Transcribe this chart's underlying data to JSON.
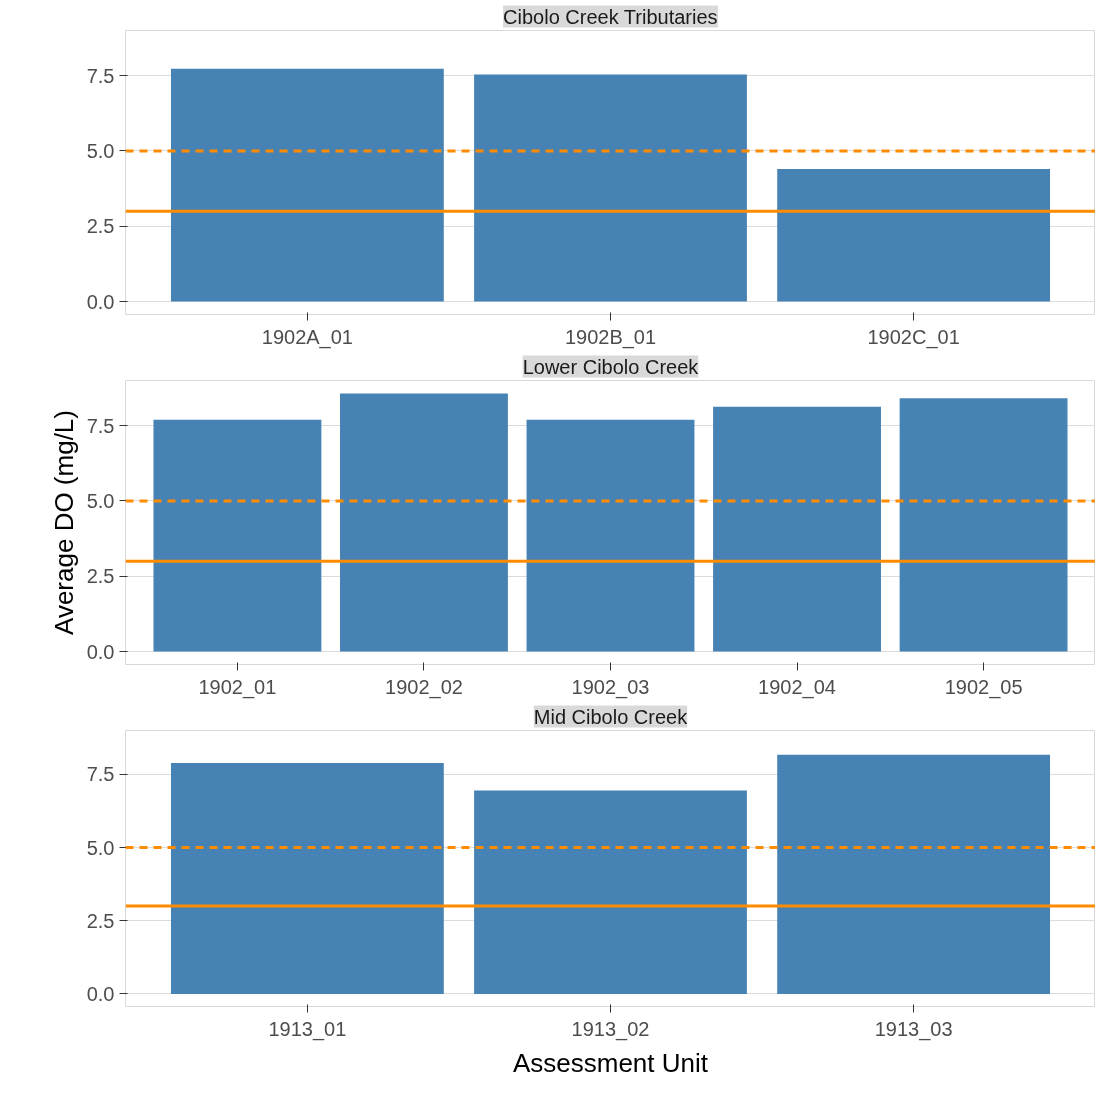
{
  "chart_data": [
    {
      "type": "bar",
      "title": "Cibolo Creek Tributaries",
      "categories": [
        "1902A_01",
        "1902B_01",
        "1902C_01"
      ],
      "values": [
        7.73,
        7.54,
        4.4
      ],
      "color": "#4682b4",
      "ylim": [
        -0.43,
        9.0
      ],
      "yticks": [
        {
          "value": 0,
          "label": "0.0"
        },
        {
          "value": 2.5,
          "label": "2.5"
        },
        {
          "value": 5,
          "label": "5.0"
        },
        {
          "value": 7.5,
          "label": "7.5"
        }
      ],
      "grid": "y",
      "ref_lines": [
        {
          "axis": "y",
          "value": 5,
          "color": "#ff8c00",
          "line_style": "dashed"
        },
        {
          "axis": "y",
          "value": 3,
          "color": "#ff8c00",
          "line_style": "solid"
        }
      ]
    },
    {
      "type": "bar",
      "title": "Lower Cibolo Creek",
      "ylabel": "Average DO (mg/L)",
      "categories": [
        "1902_01",
        "1902_02",
        "1902_03",
        "1902_04",
        "1902_05"
      ],
      "values": [
        7.7,
        8.57,
        7.7,
        8.13,
        8.41
      ],
      "color": "#4682b4",
      "ylim": [
        -0.43,
        9.0
      ],
      "yticks": [
        {
          "value": 0,
          "label": "0.0"
        },
        {
          "value": 2.5,
          "label": "2.5"
        },
        {
          "value": 5,
          "label": "5.0"
        },
        {
          "value": 7.5,
          "label": "7.5"
        }
      ],
      "grid": "y",
      "ref_lines": [
        {
          "axis": "y",
          "value": 5,
          "color": "#ff8c00",
          "line_style": "dashed"
        },
        {
          "axis": "y",
          "value": 3,
          "color": "#ff8c00",
          "line_style": "solid"
        }
      ]
    },
    {
      "type": "bar",
      "title": "Mid Cibolo Creek",
      "xlabel": "Assessment Unit",
      "categories": [
        "1913_01",
        "1913_02",
        "1913_03"
      ],
      "values": [
        7.89,
        6.95,
        8.17
      ],
      "color": "#4682b4",
      "ylim": [
        -0.43,
        9.0
      ],
      "yticks": [
        {
          "value": 0,
          "label": "0.0"
        },
        {
          "value": 2.5,
          "label": "2.5"
        },
        {
          "value": 5,
          "label": "5.0"
        },
        {
          "value": 7.5,
          "label": "7.5"
        }
      ],
      "grid": "y",
      "ref_lines": [
        {
          "axis": "y",
          "value": 5,
          "color": "#ff8c00",
          "line_style": "dashed"
        },
        {
          "axis": "y",
          "value": 3,
          "color": "#ff8c00",
          "line_style": "solid"
        }
      ]
    }
  ]
}
